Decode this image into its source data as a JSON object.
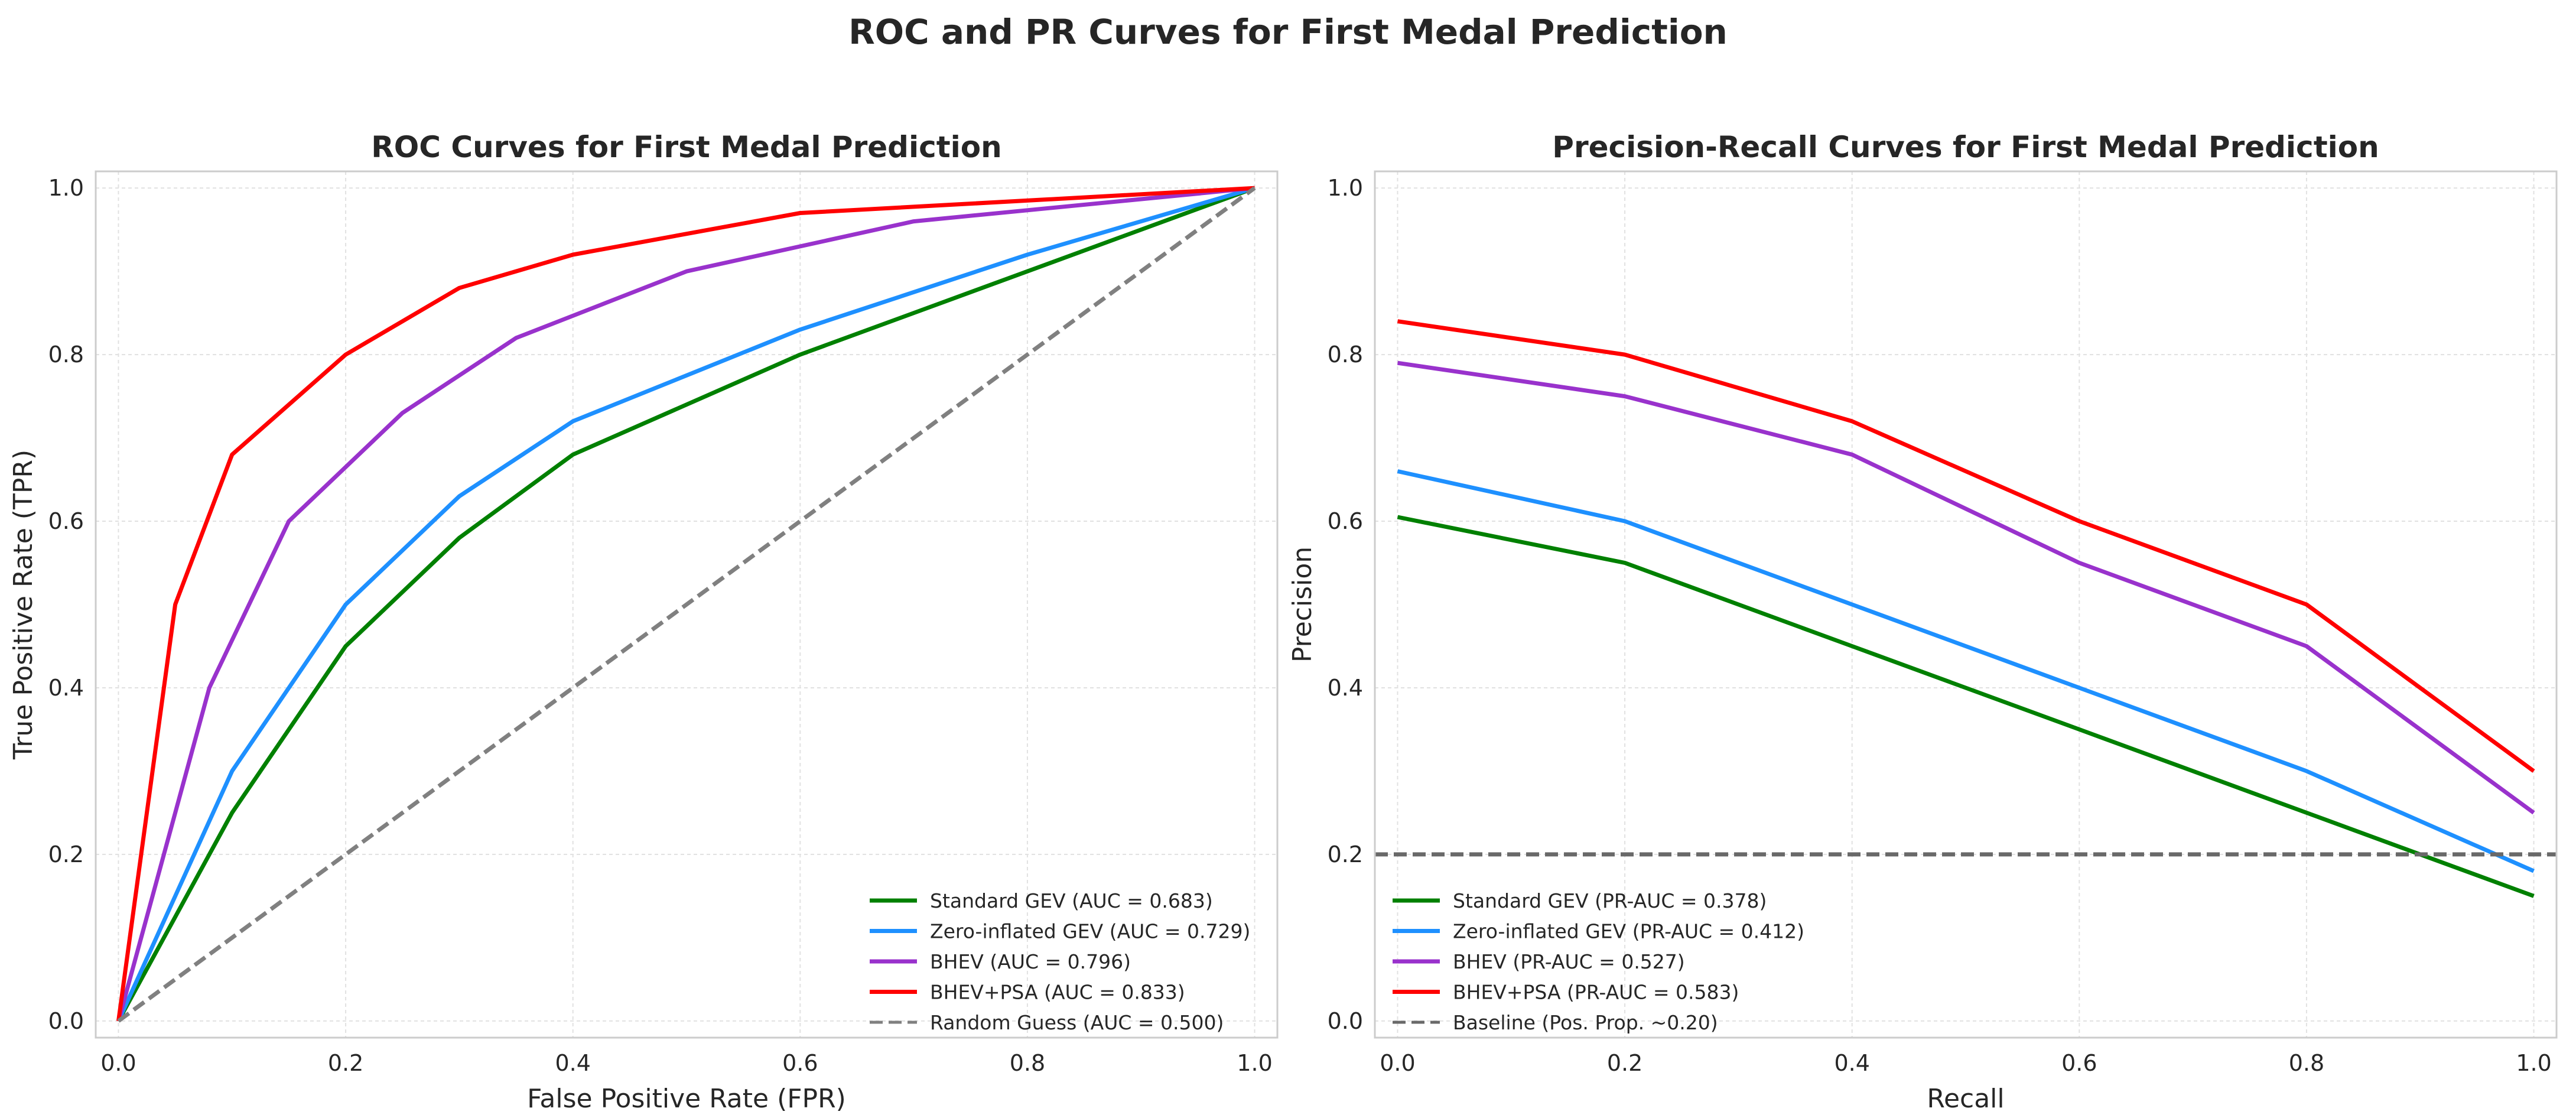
{
  "suptitle": "ROC and PR Curves for First Medal Prediction",
  "chart_data": [
    {
      "type": "line",
      "title": "ROC Curves for First Medal Prediction",
      "xlabel": "False Positive Rate (FPR)",
      "ylabel": "True Positive Rate (TPR)",
      "xlim": [
        -0.02,
        1.02
      ],
      "ylim": [
        -0.02,
        1.02
      ],
      "xticks": [
        0.0,
        0.2,
        0.4,
        0.6,
        0.8,
        1.0
      ],
      "yticks": [
        0.0,
        0.2,
        0.4,
        0.6,
        0.8,
        1.0
      ],
      "tick_labels": [
        "0.0",
        "0.2",
        "0.4",
        "0.6",
        "0.8",
        "1.0"
      ],
      "grid": true,
      "legend_position": "lower-right",
      "series": [
        {
          "name": "Standard GEV (AUC = 0.683)",
          "color": "#008000",
          "dashed": false,
          "x": [
            0.0,
            0.1,
            0.2,
            0.3,
            0.4,
            0.6,
            0.8,
            1.0
          ],
          "y": [
            0.0,
            0.25,
            0.45,
            0.58,
            0.68,
            0.8,
            0.9,
            1.0
          ]
        },
        {
          "name": "Zero-inflated GEV (AUC = 0.729)",
          "color": "#1E90FF",
          "dashed": false,
          "x": [
            0.0,
            0.1,
            0.2,
            0.3,
            0.4,
            0.6,
            0.8,
            1.0
          ],
          "y": [
            0.0,
            0.3,
            0.5,
            0.63,
            0.72,
            0.83,
            0.92,
            1.0
          ]
        },
        {
          "name": "BHEV (AUC = 0.796)",
          "color": "#9932CC",
          "dashed": false,
          "x": [
            0.0,
            0.08,
            0.15,
            0.25,
            0.35,
            0.5,
            0.7,
            1.0
          ],
          "y": [
            0.0,
            0.4,
            0.6,
            0.73,
            0.82,
            0.9,
            0.96,
            1.0
          ]
        },
        {
          "name": "BHEV+PSA (AUC = 0.833)",
          "color": "#FF0000",
          "dashed": false,
          "x": [
            0.0,
            0.05,
            0.1,
            0.2,
            0.3,
            0.4,
            0.6,
            1.0
          ],
          "y": [
            0.0,
            0.5,
            0.68,
            0.8,
            0.88,
            0.92,
            0.97,
            1.0
          ]
        },
        {
          "name": "Random Guess (AUC = 0.500)",
          "color": "#808080",
          "dashed": true,
          "x": [
            0.0,
            1.0
          ],
          "y": [
            0.0,
            1.0
          ]
        }
      ]
    },
    {
      "type": "line",
      "title": "Precision-Recall Curves for First Medal Prediction",
      "xlabel": "Recall",
      "ylabel": "Precision",
      "xlim": [
        -0.02,
        1.02
      ],
      "ylim": [
        -0.02,
        1.02
      ],
      "xticks": [
        0.0,
        0.2,
        0.4,
        0.6,
        0.8,
        1.0
      ],
      "yticks": [
        0.0,
        0.2,
        0.4,
        0.6,
        0.8,
        1.0
      ],
      "tick_labels": [
        "0.0",
        "0.2",
        "0.4",
        "0.6",
        "0.8",
        "1.0"
      ],
      "grid": true,
      "legend_position": "lower-left",
      "series": [
        {
          "name": "Standard GEV (PR-AUC = 0.378)",
          "color": "#008000",
          "dashed": false,
          "x": [
            0.0,
            0.2,
            0.4,
            0.6,
            0.8,
            1.0
          ],
          "y": [
            0.605,
            0.55,
            0.45,
            0.35,
            0.25,
            0.15
          ]
        },
        {
          "name": "Zero-inflated GEV (PR-AUC = 0.412)",
          "color": "#1E90FF",
          "dashed": false,
          "x": [
            0.0,
            0.2,
            0.4,
            0.6,
            0.8,
            1.0
          ],
          "y": [
            0.66,
            0.6,
            0.5,
            0.4,
            0.3,
            0.18
          ]
        },
        {
          "name": "BHEV (PR-AUC = 0.527)",
          "color": "#9932CC",
          "dashed": false,
          "x": [
            0.0,
            0.2,
            0.4,
            0.6,
            0.8,
            1.0
          ],
          "y": [
            0.79,
            0.75,
            0.68,
            0.55,
            0.45,
            0.25
          ]
        },
        {
          "name": "BHEV+PSA (PR-AUC = 0.583)",
          "color": "#FF0000",
          "dashed": false,
          "x": [
            0.0,
            0.2,
            0.4,
            0.6,
            0.8,
            1.0
          ],
          "y": [
            0.84,
            0.8,
            0.72,
            0.6,
            0.5,
            0.3
          ]
        },
        {
          "name": "Baseline (Pos. Prop. ~0.20)",
          "color": "#696969",
          "dashed": true,
          "x": [
            -0.02,
            1.02
          ],
          "y": [
            0.2,
            0.2
          ]
        }
      ]
    }
  ]
}
